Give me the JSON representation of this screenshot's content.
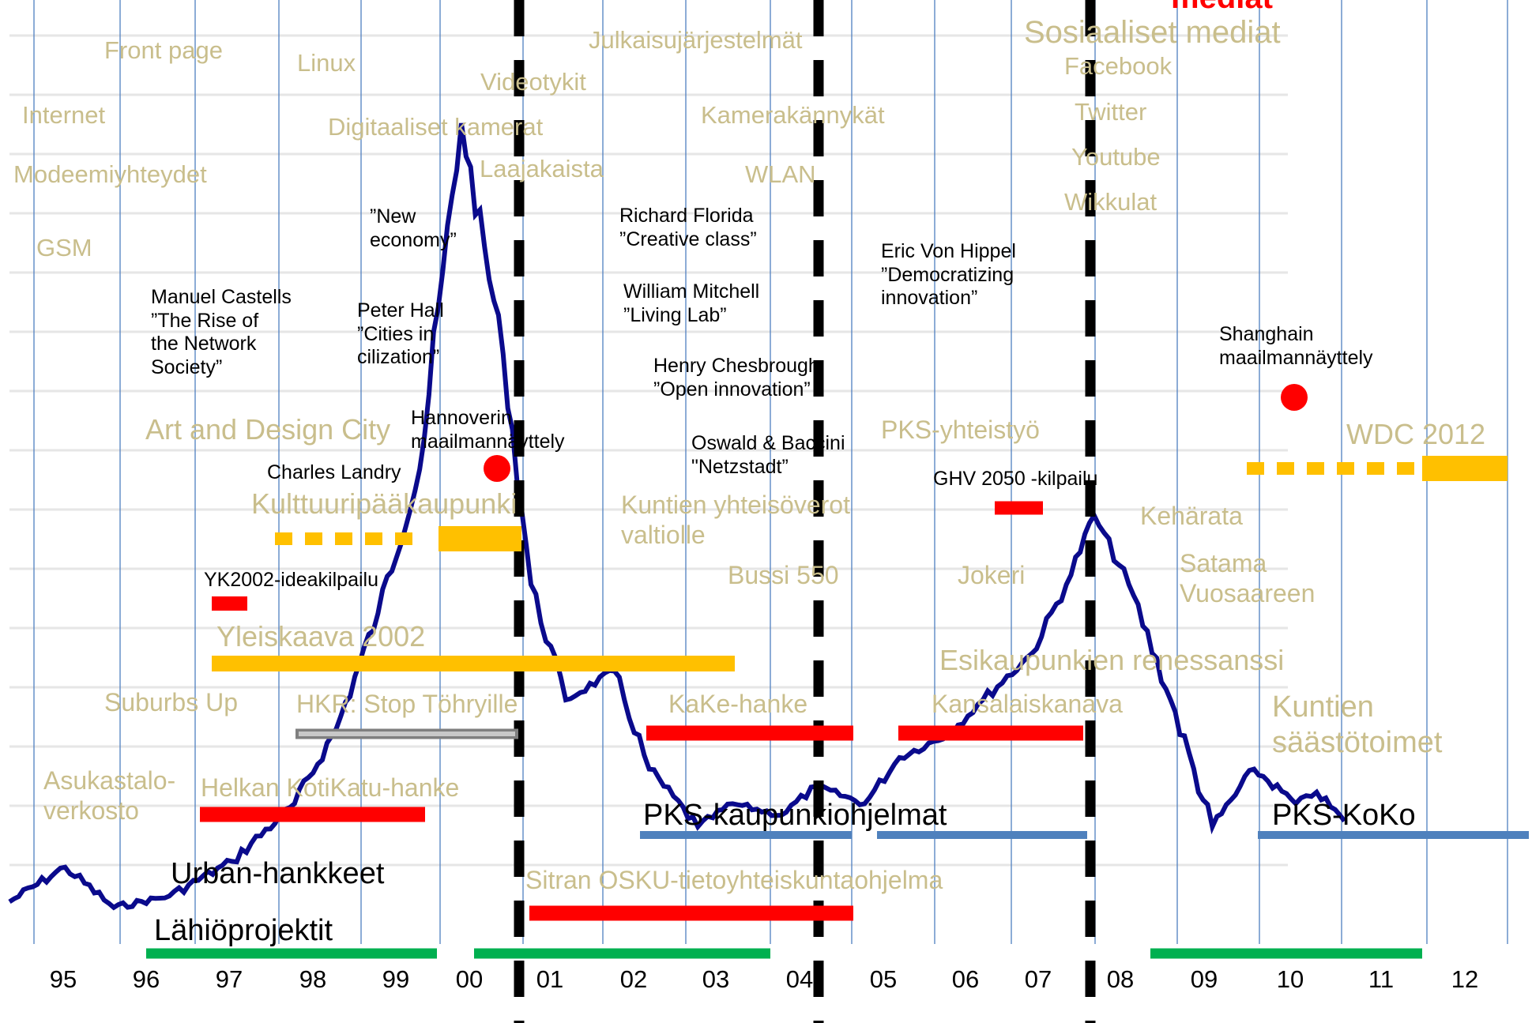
{
  "years": [
    "95",
    "96",
    "97",
    "98",
    "99",
    "00",
    "01",
    "02",
    "03",
    "04",
    "05",
    "06",
    "07",
    "08",
    "09",
    "10",
    "11",
    "12"
  ],
  "header": {
    "media": "mediat"
  },
  "tech_labels": {
    "front_page": "Front page",
    "linux": "Linux",
    "internet": "Internet",
    "modeemiyhteydet": "Modeemiyhteydet",
    "gsm": "GSM",
    "videotykit": "Videotykit",
    "digitaaliset_kamerat": "Digitaaliset kamerat",
    "laajakaista": "Laajakaista",
    "julkaisujarjestelmat": "Julkaisujärjestelmät",
    "kamerakannykat": "Kamerakännykät",
    "wlan": "WLAN",
    "sosiaaliset_mediat": "Sosiaaliset mediat",
    "facebook": "Facebook",
    "twitter": "Twitter",
    "youtube": "Youtube",
    "wikkulat": "Wikkulat"
  },
  "people": {
    "castells": "Manuel Castells\n”The Rise of\nthe Network\nSociety”",
    "new_economy": "”New\neconomy”",
    "peter_hall": "Peter Hall\n”Cities in\ncilization”",
    "florida": "Richard Florida\n”Creative class”",
    "mitchell": "William Mitchell\n”Living Lab”",
    "chesbrough": "Henry Chesbrough\n”Open innovation”",
    "oswald": "Oswald & Baccini\n\"Netzstadt”",
    "von_hippel": "Eric Von Hippel\n”Democratizing\ninnovation”",
    "shanghai": "Shanghain\nmaailmannäyttely",
    "hannover": "Hannoverin\nmaailmannäyttely",
    "landry": "Charles Landry",
    "yk2002": "YK2002-ideakilpailu",
    "ghv2050": "GHV 2050 -kilpailu"
  },
  "projects": {
    "art_design": "Art and Design City",
    "kulttuuri": "Kulttuuripääkaupunki",
    "kuntien_yhteiso": "Kuntien yhteisöverot\nvaltiolle",
    "bussi": "Bussi 550",
    "jokeri": "Jokeri",
    "pks_yhteistyo": "PKS-yhteistyö",
    "keharata": "Kehärata",
    "satama": "Satama\nVuosaareen",
    "wdc": "WDC 2012",
    "yleiskaava": "Yleiskaava 2002",
    "esikaupunkien": "Esikaupunkien renessanssi",
    "suburbs_up": "Suburbs Up",
    "hkr": "HKR: Stop Töhryille",
    "kake": "KaKe-hanke",
    "kansalaiskanava": "Kansalaiskanava",
    "kuntien_saasto": "Kuntien\nsäästötoimet",
    "asukastalo": "Asukastalo-\nverkosto",
    "helka": "Helkan KotiKatu-hanke",
    "sitra": "Sitran OSKU-tietoyhteiskuntaohjelma"
  },
  "programs": {
    "pks_kaupunki": "PKS-kaupunkiohjelmat",
    "pks_koko": "PKS-KoKo",
    "urban": "Urban-hankkeet",
    "lahio": "Lähiöprojektit"
  },
  "colors": {
    "index_line": "#0a0a8c",
    "year_grid": "#4f7fc0",
    "h_grid": "#e6e6e6",
    "red_bar": "#ff0000",
    "orange_bar": "#ffc000",
    "gray_bar": "#a6a6a6",
    "blue_bar": "#4f81bd",
    "green_bar": "#00b050",
    "dashed_divider": "#000000"
  },
  "chart_data": {
    "type": "line",
    "description_ref": "stock index",
    "x": [
      "1994-10",
      "1995-06",
      "1996-01",
      "1996-09",
      "1997-06",
      "1998-03",
      "1998-09",
      "1999-03",
      "1999-09",
      "2000-03",
      "2000-09",
      "2001-01",
      "2001-06",
      "2002-01",
      "2002-06",
      "2003-01",
      "2003-06",
      "2004-01",
      "2004-06",
      "2005-01",
      "2005-06",
      "2006-01",
      "2006-06",
      "2007-01",
      "2007-06",
      "2007-10",
      "2008-03",
      "2008-09",
      "2009-03",
      "2009-09",
      "2010-03",
      "2010-06",
      "2010-10"
    ],
    "values": [
      5,
      11,
      4,
      6,
      12,
      22,
      35,
      55,
      80,
      140,
      100,
      60,
      40,
      45,
      28,
      18,
      22,
      20,
      25,
      22,
      30,
      34,
      40,
      48,
      60,
      72,
      60,
      40,
      18,
      28,
      22,
      24,
      19
    ]
  }
}
